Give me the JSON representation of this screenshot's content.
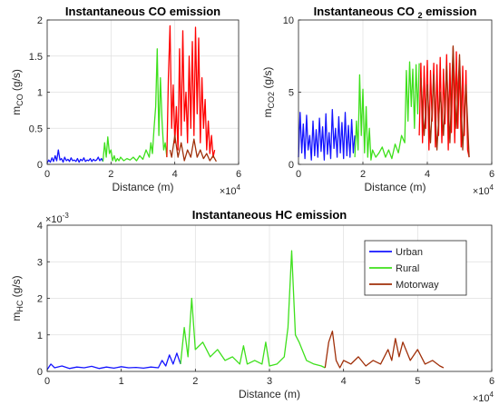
{
  "chart_data": [
    {
      "type": "line",
      "title_parts": [
        "Instantaneous CO emission"
      ],
      "xlabel": "Distance (m)",
      "x_multiplier": "×10",
      "x_multiplier_exp": "4",
      "ylabel_main": "m",
      "ylabel_sub": "CO",
      "ylabel_unit": " (g/s)",
      "xlim": [
        0,
        6
      ],
      "ylim": [
        0,
        2
      ],
      "xticks": [
        "0",
        "2",
        "4",
        "6"
      ],
      "xtick_values": [
        0,
        2,
        4,
        6
      ],
      "yticks": [
        "0",
        "0.5",
        "1",
        "1.5",
        "2"
      ],
      "ytick_values": [
        0,
        0.5,
        1,
        1.5,
        2
      ],
      "grid": true,
      "series": [
        {
          "color": "#1515ff",
          "x": [
            0.0,
            0.05,
            0.1,
            0.15,
            0.2,
            0.25,
            0.3,
            0.35,
            0.4,
            0.45,
            0.5,
            0.55,
            0.6,
            0.65,
            0.7,
            0.75,
            0.8,
            0.85,
            0.9,
            0.95,
            1.0,
            1.05,
            1.1,
            1.15,
            1.2,
            1.25,
            1.3,
            1.35,
            1.4,
            1.45,
            1.5,
            1.55,
            1.6,
            1.65,
            1.7,
            1.75
          ],
          "y": [
            0.02,
            0.06,
            0.03,
            0.09,
            0.04,
            0.12,
            0.05,
            0.2,
            0.06,
            0.08,
            0.03,
            0.1,
            0.05,
            0.07,
            0.04,
            0.09,
            0.05,
            0.06,
            0.04,
            0.08,
            0.03,
            0.07,
            0.05,
            0.09,
            0.04,
            0.06,
            0.05,
            0.08,
            0.04,
            0.07,
            0.05,
            0.06,
            0.1,
            0.05,
            0.08,
            0.04
          ]
        },
        {
          "color": "#3ee01c",
          "x": [
            1.75,
            1.8,
            1.85,
            1.9,
            1.95,
            2.0,
            2.05,
            2.1,
            2.15,
            2.2,
            2.25,
            2.3,
            2.4,
            2.5,
            2.6,
            2.7,
            2.8,
            2.9,
            3.0,
            3.1,
            3.2,
            3.25,
            3.3,
            3.35,
            3.4,
            3.45,
            3.5,
            3.55,
            3.6,
            3.65,
            3.7,
            3.75
          ],
          "y": [
            0.04,
            0.3,
            0.1,
            0.38,
            0.15,
            0.2,
            0.05,
            0.12,
            0.04,
            0.08,
            0.05,
            0.1,
            0.05,
            0.08,
            0.06,
            0.1,
            0.05,
            0.12,
            0.07,
            0.2,
            0.1,
            0.3,
            0.15,
            0.5,
            0.8,
            1.6,
            0.4,
            1.2,
            0.6,
            0.2,
            0.3,
            0.1
          ]
        },
        {
          "color": "#ff0000",
          "x": [
            3.75,
            3.8,
            3.85,
            3.9,
            3.95,
            4.0,
            4.05,
            4.1,
            4.15,
            4.2,
            4.25,
            4.3,
            4.35,
            4.4,
            4.45,
            4.5,
            4.55,
            4.6,
            4.65,
            4.7,
            4.75,
            4.8,
            4.85,
            4.9,
            4.95,
            5.0,
            5.05,
            5.1,
            5.15,
            5.2,
            5.25
          ],
          "y": [
            0.1,
            1.2,
            1.92,
            0.5,
            1.1,
            0.3,
            0.8,
            0.2,
            1.6,
            0.4,
            1.85,
            0.6,
            1.0,
            0.3,
            1.5,
            0.5,
            1.7,
            0.4,
            1.9,
            0.7,
            1.75,
            0.3,
            1.2,
            0.5,
            0.9,
            0.2,
            0.6,
            0.15,
            0.4,
            0.1,
            0.2
          ]
        },
        {
          "color": "#a0300a",
          "x": [
            3.85,
            3.9,
            4.0,
            4.1,
            4.2,
            4.3,
            4.4,
            4.5,
            4.6,
            4.7,
            4.8,
            4.9,
            5.0,
            5.1,
            5.2,
            5.3
          ],
          "y": [
            0.2,
            0.1,
            0.4,
            0.1,
            0.3,
            0.05,
            0.2,
            0.1,
            0.35,
            0.1,
            0.2,
            0.08,
            0.15,
            0.05,
            0.12,
            0.04
          ]
        }
      ]
    },
    {
      "type": "line",
      "title_parts": [
        "Instantaneous CO ",
        "2",
        " emission"
      ],
      "xlabel": "Distance (m)",
      "x_multiplier": "×10",
      "x_multiplier_exp": "4",
      "ylabel_main": "m",
      "ylabel_sub": "CO2",
      "ylabel_unit": " (g/s)",
      "xlim": [
        0,
        6
      ],
      "ylim": [
        0,
        10
      ],
      "xticks": [
        "0",
        "2",
        "4",
        "6"
      ],
      "xtick_values": [
        0,
        2,
        4,
        6
      ],
      "yticks": [
        "0",
        "5",
        "10"
      ],
      "ytick_values": [
        0,
        5,
        10
      ],
      "grid": true,
      "series": [
        {
          "color": "#1515ff",
          "x": [
            0.0,
            0.05,
            0.1,
            0.15,
            0.2,
            0.25,
            0.3,
            0.35,
            0.4,
            0.45,
            0.5,
            0.55,
            0.6,
            0.65,
            0.7,
            0.75,
            0.8,
            0.85,
            0.9,
            0.95,
            1.0,
            1.05,
            1.1,
            1.15,
            1.2,
            1.25,
            1.3,
            1.35,
            1.4,
            1.45,
            1.5,
            1.55,
            1.6,
            1.65,
            1.7,
            1.75
          ],
          "y": [
            0.5,
            3.6,
            0.8,
            2.8,
            0.4,
            3.4,
            1.0,
            2.0,
            0.3,
            3.0,
            0.6,
            2.4,
            0.5,
            3.2,
            0.9,
            2.6,
            0.3,
            3.5,
            0.7,
            2.2,
            0.4,
            3.8,
            1.1,
            2.5,
            0.5,
            3.3,
            0.8,
            2.9,
            0.4,
            3.6,
            0.6,
            2.7,
            0.5,
            3.1,
            0.8,
            2.0
          ]
        },
        {
          "color": "#3ee01c",
          "x": [
            1.75,
            1.8,
            1.85,
            1.9,
            1.95,
            2.0,
            2.05,
            2.1,
            2.15,
            2.2,
            2.25,
            2.3,
            2.4,
            2.5,
            2.6,
            2.7,
            2.8,
            2.9,
            3.0,
            3.1,
            3.2,
            3.3,
            3.35,
            3.4,
            3.45,
            3.5,
            3.55,
            3.6,
            3.65,
            3.7,
            3.75
          ],
          "y": [
            0.5,
            3.0,
            1.0,
            6.2,
            2.0,
            5.2,
            0.8,
            4.0,
            0.5,
            2.5,
            0.3,
            1.0,
            0.5,
            0.8,
            1.2,
            0.5,
            1.0,
            0.4,
            1.4,
            0.8,
            2.0,
            1.5,
            6.5,
            3.0,
            7.1,
            4.0,
            6.6,
            2.5,
            6.9,
            3.5,
            7.0
          ]
        },
        {
          "color": "#ff0000",
          "x": [
            3.75,
            3.8,
            3.85,
            3.9,
            3.95,
            4.0,
            4.05,
            4.1,
            4.15,
            4.2,
            4.25,
            4.3,
            4.35,
            4.4,
            4.45,
            4.5,
            4.55,
            4.6,
            4.65,
            4.7,
            4.75,
            4.8,
            4.85,
            4.9,
            4.95,
            5.0,
            5.05,
            5.1,
            5.15,
            5.2,
            5.25,
            5.3
          ],
          "y": [
            2.0,
            7.0,
            1.5,
            6.8,
            2.5,
            7.2,
            1.0,
            6.5,
            3.0,
            7.0,
            1.2,
            6.9,
            2.0,
            7.4,
            1.5,
            6.6,
            2.8,
            7.6,
            1.0,
            7.0,
            2.2,
            8.1,
            1.5,
            7.8,
            2.5,
            7.2,
            1.2,
            6.8,
            2.0,
            6.5,
            1.0,
            0.5
          ]
        },
        {
          "color": "#a0300a",
          "x": [
            3.8,
            3.9,
            4.0,
            4.1,
            4.2,
            4.3,
            4.4,
            4.5,
            4.6,
            4.7,
            4.8,
            4.9,
            5.0,
            5.1,
            5.2,
            5.3
          ],
          "y": [
            6.0,
            2.0,
            5.5,
            1.5,
            6.2,
            1.0,
            5.0,
            2.0,
            6.8,
            1.5,
            8.2,
            2.5,
            7.6,
            1.0,
            5.5,
            0.5
          ]
        }
      ]
    },
    {
      "type": "line",
      "title_parts": [
        "Instantaneous HC emission"
      ],
      "xlabel": "Distance (m)",
      "x_multiplier": "×10",
      "x_multiplier_exp": "4",
      "y_multiplier": "×10",
      "y_multiplier_exp": "-3",
      "ylabel_main": "m",
      "ylabel_sub": "HC",
      "ylabel_unit": " (g/s)",
      "xlim": [
        0,
        6
      ],
      "ylim": [
        0,
        4
      ],
      "xticks": [
        "0",
        "1",
        "2",
        "3",
        "4",
        "5",
        "6"
      ],
      "xtick_values": [
        0,
        1,
        2,
        3,
        4,
        5,
        6
      ],
      "yticks": [
        "0",
        "1",
        "2",
        "3",
        "4"
      ],
      "ytick_values": [
        0,
        1,
        2,
        3,
        4
      ],
      "grid": true,
      "legend": "top-right",
      "series": [
        {
          "name": "Urban",
          "color": "#1515ff",
          "x": [
            0.0,
            0.05,
            0.1,
            0.2,
            0.3,
            0.4,
            0.5,
            0.6,
            0.7,
            0.8,
            0.9,
            1.0,
            1.1,
            1.2,
            1.3,
            1.4,
            1.5,
            1.55,
            1.6,
            1.65,
            1.7,
            1.75,
            1.8
          ],
          "y": [
            0.05,
            0.2,
            0.1,
            0.15,
            0.08,
            0.12,
            0.1,
            0.14,
            0.08,
            0.12,
            0.09,
            0.13,
            0.1,
            0.11,
            0.09,
            0.12,
            0.1,
            0.3,
            0.15,
            0.45,
            0.2,
            0.5,
            0.2
          ]
        },
        {
          "name": "Rural",
          "color": "#3ee01c",
          "x": [
            1.8,
            1.85,
            1.9,
            1.95,
            2.0,
            2.1,
            2.2,
            2.3,
            2.4,
            2.5,
            2.6,
            2.65,
            2.7,
            2.8,
            2.9,
            2.95,
            3.0,
            3.1,
            3.2,
            3.25,
            3.3,
            3.35,
            3.4,
            3.5,
            3.6,
            3.7,
            3.75
          ],
          "y": [
            0.2,
            1.2,
            0.4,
            2.0,
            0.6,
            0.8,
            0.4,
            0.6,
            0.3,
            0.4,
            0.2,
            0.7,
            0.2,
            0.3,
            0.2,
            0.8,
            0.15,
            0.2,
            0.4,
            1.2,
            3.3,
            1.0,
            0.8,
            0.3,
            0.2,
            0.15,
            0.1
          ]
        },
        {
          "name": "Motorway",
          "color": "#a0300a",
          "x": [
            3.75,
            3.8,
            3.85,
            3.9,
            3.95,
            4.0,
            4.1,
            4.2,
            4.3,
            4.4,
            4.5,
            4.6,
            4.65,
            4.7,
            4.75,
            4.8,
            4.9,
            5.0,
            5.1,
            5.2,
            5.3,
            5.35
          ],
          "y": [
            0.1,
            0.8,
            1.1,
            0.3,
            0.1,
            0.3,
            0.2,
            0.4,
            0.15,
            0.3,
            0.2,
            0.6,
            0.3,
            0.9,
            0.4,
            0.8,
            0.3,
            0.6,
            0.2,
            0.3,
            0.15,
            0.1
          ]
        }
      ]
    }
  ]
}
